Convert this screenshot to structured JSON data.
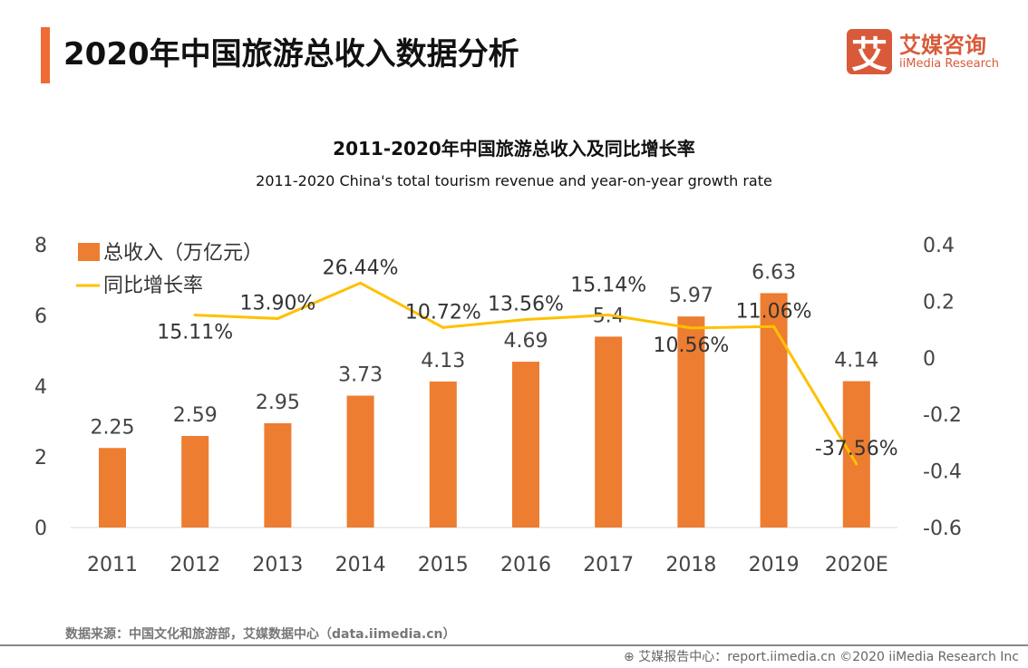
{
  "header": {
    "title": "2020年中国旅游总收入数据分析",
    "logo_cn": "艾媒咨询",
    "logo_en": "iiMedia Research",
    "logo_mark": "艾"
  },
  "chart_data": {
    "type": "bar+line",
    "title": "2011-2020年中国旅游总收入及同比增长率",
    "subtitle": "2011-2020 China's total tourism revenue and year-on-year growth rate",
    "categories": [
      "2011",
      "2012",
      "2013",
      "2014",
      "2015",
      "2016",
      "2017",
      "2018",
      "2019",
      "2020E"
    ],
    "series": [
      {
        "name": "总收入（万亿元）",
        "type": "bar",
        "axis": "left",
        "color": "#ed7d31",
        "values": [
          2.25,
          2.59,
          2.95,
          3.73,
          4.13,
          4.69,
          5.4,
          5.97,
          6.63,
          4.14
        ],
        "labels": [
          "2.25",
          "2.59",
          "2.95",
          "3.73",
          "4.13",
          "4.69",
          "5.4",
          "5.97",
          "6.63",
          "4.14"
        ]
      },
      {
        "name": "同比增长率",
        "type": "line",
        "axis": "right",
        "color": "#ffc000",
        "values": [
          null,
          0.1511,
          0.139,
          0.2644,
          0.1072,
          0.1356,
          0.1514,
          0.1056,
          0.1106,
          -0.3756
        ],
        "labels": [
          "",
          "15.11%",
          "13.90%",
          "26.44%",
          "10.72%",
          "13.56%",
          "15.14%",
          "10.56%",
          "11.06%",
          "-37.56%"
        ]
      }
    ],
    "left_axis": {
      "min": 0,
      "max": 8,
      "ticks": [
        "0",
        "2",
        "4",
        "6",
        "8"
      ]
    },
    "right_axis": {
      "min": -0.6,
      "max": 0.4,
      "ticks": [
        "-0.6",
        "-0.4",
        "-0.2",
        "0",
        "0.2",
        "0.4"
      ]
    },
    "legend": "top-left",
    "grid": false
  },
  "footer": {
    "source": "数据来源：中国文化和旅游部，艾媒数据中心（data.iimedia.cn）",
    "copyright": "艾媒报告中心：report.iimedia.cn   ©2020  iiMedia Research  Inc"
  }
}
